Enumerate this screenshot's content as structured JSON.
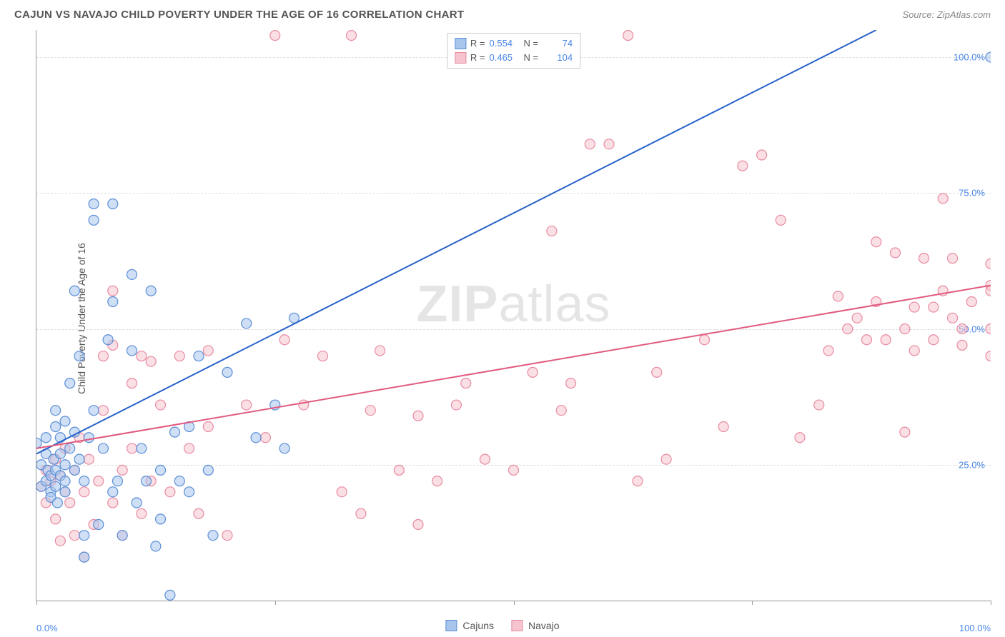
{
  "title": "CAJUN VS NAVAJO CHILD POVERTY UNDER THE AGE OF 16 CORRELATION CHART",
  "source_label": "Source: ZipAtlas.com",
  "ylabel": "Child Poverty Under the Age of 16",
  "watermark_bold": "ZIP",
  "watermark_light": "atlas",
  "chart": {
    "type": "scatter",
    "xlim": [
      0,
      100
    ],
    "ylim": [
      0,
      105
    ],
    "xtick_positions": [
      0,
      25,
      50,
      75,
      100
    ],
    "xtick_labels_shown": {
      "0": "0.0%",
      "100": "100.0%"
    },
    "ytick_positions": [
      25,
      50,
      75,
      100
    ],
    "ytick_labels": [
      "25.0%",
      "50.0%",
      "75.0%",
      "100.0%"
    ],
    "grid_color": "#dddddd",
    "background_color": "#ffffff",
    "axis_color": "#999999",
    "marker_radius": 7,
    "marker_stroke_width": 1.2,
    "line_width": 2,
    "series": [
      {
        "name": "Cajuns",
        "label": "Cajuns",
        "fill_color": "#a8c5ec",
        "stroke_color": "#5b8fd6",
        "line_color": "#2962c9",
        "R": "0.554",
        "N": "74",
        "regression": {
          "x1": 0,
          "y1": 27,
          "x2": 88,
          "y2": 105
        },
        "points": [
          [
            0,
            29
          ],
          [
            0.5,
            25
          ],
          [
            0.5,
            21
          ],
          [
            1,
            22
          ],
          [
            1,
            27
          ],
          [
            1,
            30
          ],
          [
            1.2,
            24
          ],
          [
            1.5,
            20
          ],
          [
            1.5,
            23
          ],
          [
            1.5,
            19
          ],
          [
            1.8,
            26
          ],
          [
            2,
            24
          ],
          [
            2,
            32
          ],
          [
            2,
            35
          ],
          [
            2,
            21
          ],
          [
            2.2,
            18
          ],
          [
            2.5,
            27
          ],
          [
            2.5,
            23
          ],
          [
            2.5,
            30
          ],
          [
            3,
            22
          ],
          [
            3,
            25
          ],
          [
            3,
            33
          ],
          [
            3,
            20
          ],
          [
            3.5,
            28
          ],
          [
            3.5,
            40
          ],
          [
            4,
            24
          ],
          [
            4,
            31
          ],
          [
            4,
            57
          ],
          [
            4.5,
            26
          ],
          [
            4.5,
            45
          ],
          [
            5,
            22
          ],
          [
            5,
            8
          ],
          [
            5,
            12
          ],
          [
            5.5,
            30
          ],
          [
            6,
            70
          ],
          [
            6,
            73
          ],
          [
            6,
            35
          ],
          [
            6.5,
            14
          ],
          [
            7,
            28
          ],
          [
            7.5,
            48
          ],
          [
            8,
            73
          ],
          [
            8,
            55
          ],
          [
            8,
            20
          ],
          [
            8.5,
            22
          ],
          [
            9,
            12
          ],
          [
            10,
            60
          ],
          [
            10,
            46
          ],
          [
            10.5,
            18
          ],
          [
            11,
            28
          ],
          [
            11.5,
            22
          ],
          [
            12,
            57
          ],
          [
            12.5,
            10
          ],
          [
            13,
            24
          ],
          [
            13,
            15
          ],
          [
            14,
            1
          ],
          [
            14.5,
            31
          ],
          [
            15,
            22
          ],
          [
            16,
            20
          ],
          [
            16,
            32
          ],
          [
            17,
            45
          ],
          [
            18,
            24
          ],
          [
            18.5,
            12
          ],
          [
            20,
            42
          ],
          [
            22,
            51
          ],
          [
            23,
            30
          ],
          [
            25,
            36
          ],
          [
            26,
            28
          ],
          [
            27,
            52
          ],
          [
            100,
            100
          ]
        ]
      },
      {
        "name": "Navajo",
        "label": "Navajo",
        "fill_color": "#f5c4ce",
        "stroke_color": "#e88ba1",
        "line_color": "#e05a7e",
        "R": "0.465",
        "N": "104",
        "regression": {
          "x1": 0,
          "y1": 28,
          "x2": 100,
          "y2": 58
        },
        "points": [
          [
            0.5,
            21
          ],
          [
            1,
            24
          ],
          [
            1,
            18
          ],
          [
            1.5,
            22
          ],
          [
            2,
            26
          ],
          [
            2,
            15
          ],
          [
            2.5,
            23
          ],
          [
            2.5,
            11
          ],
          [
            3,
            20
          ],
          [
            3,
            28
          ],
          [
            3.5,
            18
          ],
          [
            4,
            24
          ],
          [
            4,
            12
          ],
          [
            4.5,
            30
          ],
          [
            5,
            20
          ],
          [
            5,
            8
          ],
          [
            5.5,
            26
          ],
          [
            6,
            14
          ],
          [
            6.5,
            22
          ],
          [
            7,
            45
          ],
          [
            7,
            35
          ],
          [
            8,
            18
          ],
          [
            8,
            47
          ],
          [
            8,
            57
          ],
          [
            9,
            24
          ],
          [
            9,
            12
          ],
          [
            10,
            40
          ],
          [
            10,
            28
          ],
          [
            11,
            16
          ],
          [
            11,
            45
          ],
          [
            12,
            22
          ],
          [
            12,
            44
          ],
          [
            13,
            36
          ],
          [
            14,
            20
          ],
          [
            15,
            45
          ],
          [
            16,
            28
          ],
          [
            17,
            16
          ],
          [
            18,
            32
          ],
          [
            18,
            46
          ],
          [
            20,
            12
          ],
          [
            22,
            36
          ],
          [
            24,
            30
          ],
          [
            25,
            104
          ],
          [
            26,
            48
          ],
          [
            28,
            36
          ],
          [
            30,
            45
          ],
          [
            32,
            20
          ],
          [
            33,
            104
          ],
          [
            34,
            16
          ],
          [
            35,
            35
          ],
          [
            36,
            46
          ],
          [
            38,
            24
          ],
          [
            40,
            34
          ],
          [
            40,
            14
          ],
          [
            42,
            22
          ],
          [
            44,
            36
          ],
          [
            45,
            40
          ],
          [
            47,
            26
          ],
          [
            50,
            24
          ],
          [
            52,
            42
          ],
          [
            54,
            68
          ],
          [
            55,
            35
          ],
          [
            56,
            40
          ],
          [
            58,
            84
          ],
          [
            60,
            84
          ],
          [
            62,
            104
          ],
          [
            63,
            22
          ],
          [
            65,
            42
          ],
          [
            66,
            26
          ],
          [
            70,
            48
          ],
          [
            72,
            32
          ],
          [
            74,
            80
          ],
          [
            76,
            82
          ],
          [
            78,
            70
          ],
          [
            80,
            30
          ],
          [
            82,
            36
          ],
          [
            83,
            46
          ],
          [
            84,
            56
          ],
          [
            85,
            50
          ],
          [
            86,
            52
          ],
          [
            87,
            48
          ],
          [
            88,
            66
          ],
          [
            88,
            55
          ],
          [
            89,
            48
          ],
          [
            90,
            64
          ],
          [
            91,
            50
          ],
          [
            91,
            31
          ],
          [
            92,
            54
          ],
          [
            92,
            46
          ],
          [
            93,
            63
          ],
          [
            94,
            54
          ],
          [
            94,
            48
          ],
          [
            95,
            57
          ],
          [
            95,
            74
          ],
          [
            96,
            52
          ],
          [
            96,
            63
          ],
          [
            97,
            50
          ],
          [
            97,
            47
          ],
          [
            98,
            55
          ],
          [
            100,
            45
          ],
          [
            100,
            50
          ],
          [
            100,
            58
          ],
          [
            100,
            57
          ],
          [
            100,
            62
          ]
        ]
      }
    ]
  },
  "legend_top": {
    "r_label": "R =",
    "n_label": "N ="
  },
  "legend_bottom": {
    "items": [
      "Cajuns",
      "Navajo"
    ]
  }
}
